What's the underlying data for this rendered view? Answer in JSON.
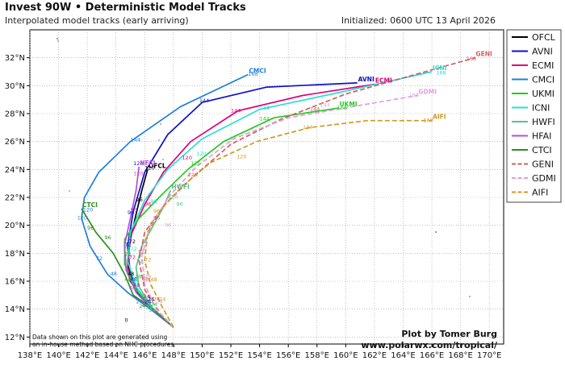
{
  "header": {
    "title": "Invest 90W • Deterministic Model Tracks",
    "subtitle": "Interpolated model tracks (early arriving)",
    "initialized": "Initialized: 0600 UTC 13 April 2026"
  },
  "footer": {
    "note_line1": "Data shown on this plot are generated using",
    "note_line2": "an in-house method based on NHC procedures.",
    "credit_line1": "Plot by Tomer Burg",
    "credit_line2": "www.polarwx.com/tropical/"
  },
  "chart_data": {
    "type": "line",
    "x_unit": "longitude °E",
    "y_unit": "latitude °N",
    "xlim": [
      138,
      171
    ],
    "ylim": [
      11.5,
      34
    ],
    "xticks": [
      138,
      140,
      142,
      144,
      146,
      148,
      150,
      152,
      154,
      156,
      158,
      160,
      162,
      164,
      166,
      168,
      170
    ],
    "xtick_labels": [
      "138°E",
      "140°E",
      "142°E",
      "144°E",
      "146°E",
      "148°E",
      "150°E",
      "152°E",
      "154°E",
      "156°E",
      "158°E",
      "160°E",
      "162°E",
      "164°E",
      "166°E",
      "168°E",
      "170°E"
    ],
    "yticks": [
      12,
      14,
      16,
      18,
      20,
      22,
      24,
      26,
      28,
      30,
      32
    ],
    "ytick_labels": [
      "12°N",
      "14°N",
      "16°N",
      "18°N",
      "20°N",
      "22°N",
      "24°N",
      "26°N",
      "28°N",
      "30°N",
      "32°N"
    ],
    "grid": true,
    "legend_position": "right",
    "series": [
      {
        "name": "OFCL",
        "color": "#000000",
        "dash": "solid",
        "end_label": "OFCL",
        "points": [
          [
            148.0,
            12.7
          ],
          [
            146.8,
            13.8
          ],
          [
            145.8,
            14.8
          ],
          [
            145.0,
            16.0
          ],
          [
            144.8,
            17.5
          ],
          [
            145.0,
            19.0
          ],
          [
            145.4,
            20.8
          ],
          [
            145.8,
            22.5
          ],
          [
            146.2,
            24.0
          ]
        ]
      },
      {
        "name": "AVNI",
        "color": "#1010c8",
        "dash": "solid",
        "end_label": "AVNI",
        "points": [
          [
            148.0,
            12.7
          ],
          [
            146.8,
            13.8
          ],
          [
            145.6,
            15.0
          ],
          [
            145.0,
            16.5
          ],
          [
            144.8,
            18.5
          ],
          [
            145.2,
            21.0
          ],
          [
            146.0,
            23.8
          ],
          [
            147.6,
            26.5
          ],
          [
            150.0,
            28.8
          ],
          [
            154.5,
            29.9
          ],
          [
            160.8,
            30.2
          ]
        ]
      },
      {
        "name": "ECMI",
        "color": "#e0007a",
        "dash": "solid",
        "end_label": "ECMI",
        "points": [
          [
            148.0,
            12.7
          ],
          [
            146.6,
            13.9
          ],
          [
            145.4,
            15.2
          ],
          [
            144.8,
            17.0
          ],
          [
            145.0,
            19.2
          ],
          [
            146.0,
            21.5
          ],
          [
            147.3,
            23.8
          ],
          [
            149.2,
            26.0
          ],
          [
            152.5,
            28.2
          ],
          [
            157.0,
            29.3
          ],
          [
            162.0,
            30.1
          ]
        ]
      },
      {
        "name": "CMCI",
        "color": "#1e7fd8",
        "dash": "solid",
        "end_label": "CMCI",
        "points": [
          [
            148.0,
            12.7
          ],
          [
            146.4,
            14.0
          ],
          [
            144.8,
            15.2
          ],
          [
            143.4,
            16.5
          ],
          [
            142.2,
            18.5
          ],
          [
            141.6,
            20.5
          ],
          [
            141.8,
            22.0
          ],
          [
            142.8,
            23.8
          ],
          [
            145.0,
            26.0
          ],
          [
            148.5,
            28.5
          ],
          [
            153.2,
            30.8
          ]
        ]
      },
      {
        "name": "UKMI",
        "color": "#22cc22",
        "dash": "solid",
        "end_label": "UKMI",
        "points": [
          [
            148.0,
            12.7
          ],
          [
            146.6,
            14.0
          ],
          [
            145.4,
            15.4
          ],
          [
            144.6,
            17.2
          ],
          [
            144.6,
            19.0
          ],
          [
            145.6,
            20.5
          ],
          [
            147.2,
            22.2
          ],
          [
            149.0,
            24.0
          ],
          [
            151.5,
            26.0
          ],
          [
            155.0,
            27.7
          ],
          [
            159.5,
            28.4
          ]
        ]
      },
      {
        "name": "ICNI",
        "color": "#28e0d0",
        "dash": "solid",
        "end_label": "ICNI",
        "points": [
          [
            148.0,
            12.7
          ],
          [
            146.6,
            14.0
          ],
          [
            145.4,
            15.6
          ],
          [
            144.8,
            17.5
          ],
          [
            145.0,
            19.5
          ],
          [
            146.0,
            21.8
          ],
          [
            147.6,
            24.0
          ],
          [
            150.0,
            26.2
          ],
          [
            154.0,
            28.3
          ],
          [
            159.5,
            29.5
          ],
          [
            166.0,
            31.0
          ]
        ]
      },
      {
        "name": "HWFI",
        "color": "#5fbf8f",
        "dash": "solid",
        "end_label": "HWFI",
        "points": [
          [
            148.0,
            12.7
          ],
          [
            146.6,
            14.0
          ],
          [
            145.6,
            15.6
          ],
          [
            145.4,
            17.0
          ],
          [
            145.8,
            18.5
          ],
          [
            146.6,
            20.0
          ],
          [
            147.3,
            21.3
          ],
          [
            147.8,
            22.5
          ]
        ]
      },
      {
        "name": "HFAI",
        "color": "#b050e0",
        "dash": "solid",
        "end_label": "HFAI",
        "points": [
          [
            148.0,
            12.7
          ],
          [
            146.6,
            13.9
          ],
          [
            145.4,
            15.2
          ],
          [
            144.7,
            16.8
          ],
          [
            144.6,
            18.6
          ],
          [
            145.0,
            20.5
          ],
          [
            145.4,
            22.5
          ],
          [
            145.6,
            24.2
          ]
        ]
      },
      {
        "name": "CTCI",
        "color": "#2f8f1f",
        "dash": "solid",
        "end_label": "CTCI",
        "points": [
          [
            148.0,
            12.7
          ],
          [
            146.6,
            14.0
          ],
          [
            145.2,
            15.0
          ],
          [
            144.6,
            16.5
          ],
          [
            143.8,
            18.0
          ],
          [
            142.6,
            19.5
          ],
          [
            141.6,
            21.2
          ]
        ]
      },
      {
        "name": "GENI",
        "color": "#cc6060",
        "dash": "dashed",
        "end_label": "GENI",
        "points": [
          [
            148.0,
            12.7
          ],
          [
            147.0,
            13.8
          ],
          [
            146.0,
            15.4
          ],
          [
            145.6,
            17.5
          ],
          [
            146.0,
            19.5
          ],
          [
            147.4,
            21.5
          ],
          [
            149.4,
            23.5
          ],
          [
            152.0,
            25.8
          ],
          [
            155.5,
            27.6
          ],
          [
            160.0,
            29.4
          ],
          [
            164.5,
            30.7
          ],
          [
            169.0,
            32.0
          ]
        ]
      },
      {
        "name": "GDMI",
        "color": "#e0a0e0",
        "dash": "dashed",
        "end_label": "GDMI",
        "points": [
          [
            148.0,
            12.7
          ],
          [
            146.8,
            14.0
          ],
          [
            146.0,
            15.8
          ],
          [
            145.8,
            17.8
          ],
          [
            146.4,
            20.0
          ],
          [
            147.8,
            22.2
          ],
          [
            149.6,
            24.2
          ],
          [
            152.2,
            26.2
          ],
          [
            156.0,
            27.7
          ],
          [
            160.5,
            28.5
          ],
          [
            165.0,
            29.3
          ]
        ]
      },
      {
        "name": "AIFI",
        "color": "#d09a20",
        "dash": "dashed",
        "end_label": "AIFI",
        "points": [
          [
            148.0,
            12.7
          ],
          [
            147.2,
            14.2
          ],
          [
            146.4,
            15.8
          ],
          [
            146.0,
            17.5
          ],
          [
            146.2,
            19.5
          ],
          [
            147.2,
            21.2
          ],
          [
            148.6,
            22.8
          ],
          [
            150.6,
            24.5
          ],
          [
            153.8,
            26.0
          ],
          [
            157.5,
            27.0
          ],
          [
            161.5,
            27.5
          ],
          [
            166.0,
            27.5
          ]
        ]
      }
    ],
    "hour_marks": [
      {
        "series": "CMCI",
        "label": "168",
        "lon": 153.2,
        "lat": 30.7
      },
      {
        "series": "CMCI",
        "label": "144",
        "lon": 145.0,
        "lat": 26.0
      },
      {
        "series": "CMCI",
        "label": "120",
        "lon": 141.7,
        "lat": 21.0
      },
      {
        "series": "CMCI",
        "label": "120",
        "lon": 141.3,
        "lat": 20.4
      },
      {
        "series": "AVNI",
        "label": "144",
        "lon": 149.8,
        "lat": 28.8
      },
      {
        "series": "AVNI",
        "label": "120",
        "lon": 145.2,
        "lat": 24.3
      },
      {
        "series": "ECMI",
        "label": "144",
        "lon": 152.0,
        "lat": 28.1
      },
      {
        "series": "ICNI",
        "label": "144",
        "lon": 154.0,
        "lat": 28.3
      },
      {
        "series": "ICNI",
        "label": "168",
        "lon": 166.3,
        "lat": 30.8
      },
      {
        "series": "UKMI",
        "label": "144",
        "lon": 154.0,
        "lat": 27.5
      },
      {
        "series": "UKMI",
        "label": "168",
        "lon": 159.4,
        "lat": 28.3
      },
      {
        "series": "GENI",
        "label": "168",
        "lon": 168.4,
        "lat": 31.8
      },
      {
        "series": "GENI",
        "label": "144",
        "lon": 157.5,
        "lat": 28.2
      },
      {
        "series": "GDMI",
        "label": "168",
        "lon": 164.4,
        "lat": 29.2
      },
      {
        "series": "GDMI",
        "label": "144",
        "lon": 158.2,
        "lat": 28.5
      },
      {
        "series": "AIFI",
        "label": "168",
        "lon": 165.4,
        "lat": 27.4
      },
      {
        "series": "AIFI",
        "label": "144",
        "lon": 157.0,
        "lat": 26.9
      },
      {
        "series": "AIFI",
        "label": "120",
        "lon": 152.4,
        "lat": 24.8
      },
      {
        "series": "HFAI",
        "label": "120",
        "lon": 145.2,
        "lat": 23.6
      },
      {
        "series": "HWFI",
        "label": "120",
        "lon": 147.6,
        "lat": 21.9
      },
      {
        "series": "HWFI",
        "label": "96",
        "lon": 148.2,
        "lat": 21.4
      },
      {
        "series": "OFCL",
        "label": "120",
        "lon": 146.0,
        "lat": 24.0
      },
      {
        "series": "ECMI",
        "label": "120",
        "lon": 148.6,
        "lat": 24.7
      },
      {
        "series": "UKMI",
        "label": "120",
        "lon": 149.2,
        "lat": 24.3
      },
      {
        "series": "GENI",
        "label": "120",
        "lon": 149.0,
        "lat": 23.5
      },
      {
        "series": "ICNI",
        "label": "120",
        "lon": 149.6,
        "lat": 25.0
      },
      {
        "series": "OFCL",
        "label": "96",
        "lon": 145.4,
        "lat": 21.7
      },
      {
        "series": "AVNI",
        "label": "96",
        "lon": 144.8,
        "lat": 20.8
      },
      {
        "series": "GENI",
        "label": "96",
        "lon": 146.6,
        "lat": 20.4
      },
      {
        "series": "HFAI",
        "label": "96",
        "lon": 145.0,
        "lat": 21.0
      },
      {
        "series": "CTCI",
        "label": "96",
        "lon": 142.0,
        "lat": 19.7
      },
      {
        "series": "CTCI",
        "label": "96",
        "lon": 143.2,
        "lat": 19.0
      },
      {
        "series": "ECMI",
        "label": "96",
        "lon": 146.0,
        "lat": 21.4
      },
      {
        "series": "GDMI",
        "label": "96",
        "lon": 147.4,
        "lat": 19.9
      },
      {
        "series": "AIFI",
        "label": "96",
        "lon": 146.6,
        "lat": 20.9
      },
      {
        "series": "ICNI",
        "label": "96",
        "lon": 146.4,
        "lat": 21.6
      },
      {
        "series": "CMCI",
        "label": "72",
        "lon": 142.6,
        "lat": 17.5
      },
      {
        "series": "AVNI",
        "label": "72",
        "lon": 144.6,
        "lat": 18.5
      },
      {
        "series": "OFCL",
        "label": "72",
        "lon": 144.9,
        "lat": 18.7
      },
      {
        "series": "UKMI",
        "label": "72",
        "lon": 144.5,
        "lat": 18.2
      },
      {
        "series": "ECMI",
        "label": "72",
        "lon": 144.9,
        "lat": 17.6
      },
      {
        "series": "GENI",
        "label": "72",
        "lon": 145.5,
        "lat": 18.0
      },
      {
        "series": "GDMI",
        "label": "72",
        "lon": 145.8,
        "lat": 18.6
      },
      {
        "series": "AIFI",
        "label": "72",
        "lon": 146.0,
        "lat": 17.4
      },
      {
        "series": "HWFI",
        "label": "72",
        "lon": 145.4,
        "lat": 17.3
      },
      {
        "series": "ICNI",
        "label": "72",
        "lon": 145.0,
        "lat": 18.2
      },
      {
        "series": "CTCI",
        "label": "72",
        "lon": 144.6,
        "lat": 17.8
      },
      {
        "series": "CMCI",
        "label": "48",
        "lon": 143.6,
        "lat": 16.4
      },
      {
        "series": "OFCL",
        "label": "48",
        "lon": 144.8,
        "lat": 16.4
      },
      {
        "series": "AVNI",
        "label": "48",
        "lon": 145.0,
        "lat": 16.0
      },
      {
        "series": "ECMI",
        "label": "48",
        "lon": 145.2,
        "lat": 15.6
      },
      {
        "series": "UKMI",
        "label": "48",
        "lon": 145.3,
        "lat": 16.2
      },
      {
        "series": "ICNI",
        "label": "48",
        "lon": 145.1,
        "lat": 15.9
      },
      {
        "series": "GENI",
        "label": "48",
        "lon": 145.8,
        "lat": 16.0
      },
      {
        "series": "HFAI",
        "label": "48",
        "lon": 144.9,
        "lat": 15.4
      },
      {
        "series": "CTCI",
        "label": "48",
        "lon": 144.6,
        "lat": 16.0
      },
      {
        "series": "AIFI",
        "label": "48",
        "lon": 146.4,
        "lat": 16.0
      },
      {
        "series": "GDMI",
        "label": "48",
        "lon": 146.0,
        "lat": 16.2
      },
      {
        "series": "OFCL",
        "label": "24",
        "lon": 146.2,
        "lat": 14.6
      },
      {
        "series": "AVNI",
        "label": "24",
        "lon": 146.0,
        "lat": 14.4
      },
      {
        "series": "ECMI",
        "label": "24",
        "lon": 145.9,
        "lat": 14.8
      },
      {
        "series": "CMCI",
        "label": "24",
        "lon": 145.4,
        "lat": 14.4
      },
      {
        "series": "UKMI",
        "label": "24",
        "lon": 146.4,
        "lat": 14.2
      },
      {
        "series": "GENI",
        "label": "24",
        "lon": 146.6,
        "lat": 14.6
      },
      {
        "series": "GDMI",
        "label": "24",
        "lon": 146.8,
        "lat": 14.4
      },
      {
        "series": "AIFI",
        "label": "24",
        "lon": 147.0,
        "lat": 14.6
      },
      {
        "series": "ICNI",
        "label": "24",
        "lon": 146.1,
        "lat": 14.0
      },
      {
        "series": "HFAI",
        "label": "24",
        "lon": 145.8,
        "lat": 14.2
      },
      {
        "series": "CTCI",
        "label": "24",
        "lon": 145.6,
        "lat": 14.1
      },
      {
        "series": "HWFI",
        "label": "24",
        "lon": 146.3,
        "lat": 13.8
      },
      {
        "series": "OFCL",
        "label": "0",
        "lon": 144.6,
        "lat": 13.1
      }
    ]
  }
}
